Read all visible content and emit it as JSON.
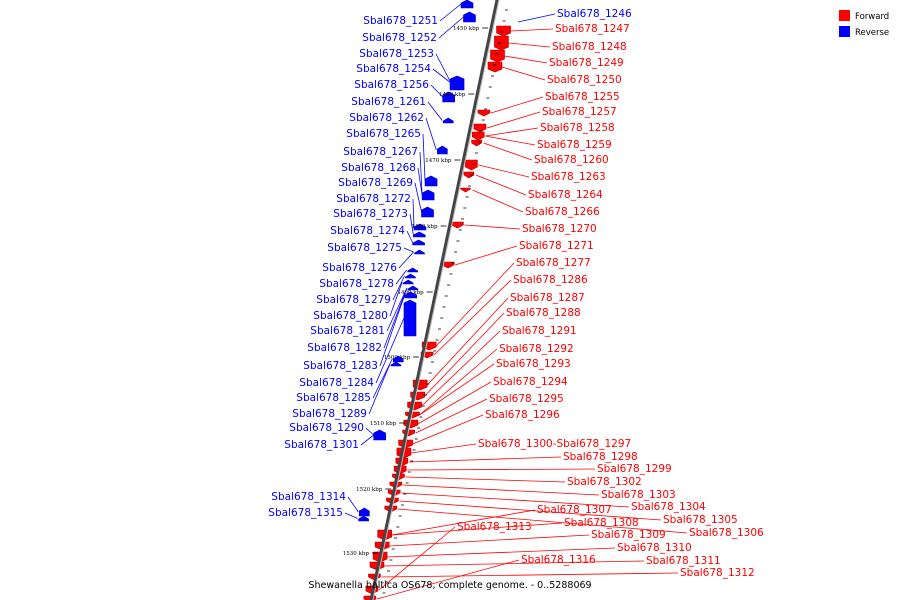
{
  "caption": "Shewanella baltica OS678, complete genome. - 0..5288069",
  "legend": [
    {
      "label": "Forward",
      "color": "#ff0000"
    },
    {
      "label": "Reverse",
      "color": "#0000ff"
    }
  ],
  "ticks": [
    "1450 kbp",
    "1460 kbp",
    "1470 kbp",
    "1480 kbp",
    "1490 kbp",
    "1500 kbp",
    "1510 kbp",
    "1520 kbp",
    "1530 kbp"
  ],
  "reverse_labels": [
    "Sbal678_1251",
    "Sbal678_1252",
    "Sbal678_1253",
    "Sbal678_1254",
    "Sbal678_1256",
    "Sbal678_1261",
    "Sbal678_1262",
    "Sbal678_1265",
    "Sbal678_1267",
    "Sbal678_1268",
    "Sbal678_1269",
    "Sbal678_1272",
    "Sbal678_1273",
    "Sbal678_1274",
    "Sbal678_1275",
    "Sbal678_1276",
    "Sbal678_1278",
    "Sbal678_1279",
    "Sbal678_1280",
    "Sbal678_1281",
    "Sbal678_1282",
    "Sbal678_1283",
    "Sbal678_1284",
    "Sbal678_1285",
    "Sbal678_1289",
    "Sbal678_1290",
    "Sbal678_1301",
    "Sbal678_1314",
    "Sbal678_1315"
  ],
  "top_right_reverse_label": "Sbal678_1246",
  "forward_labels": [
    "Sbal678_1247",
    "Sbal678_1248",
    "Sbal678_1249",
    "Sbal678_1250",
    "Sbal678_1255",
    "Sbal678_1257",
    "Sbal678_1258",
    "Sbal678_1259",
    "Sbal678_1260",
    "Sbal678_1263",
    "Sbal678_1264",
    "Sbal678_1266",
    "Sbal678_1270",
    "Sbal678_1271",
    "Sbal678_1277",
    "Sbal678_1286",
    "Sbal678_1287",
    "Sbal678_1288",
    "Sbal678_1291",
    "Sbal678_1292",
    "Sbal678_1293",
    "Sbal678_1294",
    "Sbal678_1295",
    "Sbal678_1296",
    "Sbal678_1300-Sbal678_1297",
    "Sbal678_1298",
    "Sbal678_1299",
    "Sbal678_1302",
    "Sbal678_1303",
    "Sbal678_1304",
    "Sbal678_1305",
    "Sbal678_1306",
    "Sbal678_1307",
    "Sbal678_1308",
    "Sbal678_1309",
    "Sbal678_1310",
    "Sbal678_1311",
    "Sbal678_1312",
    "Sbal678_1313",
    "Sbal678_1316"
  ]
}
